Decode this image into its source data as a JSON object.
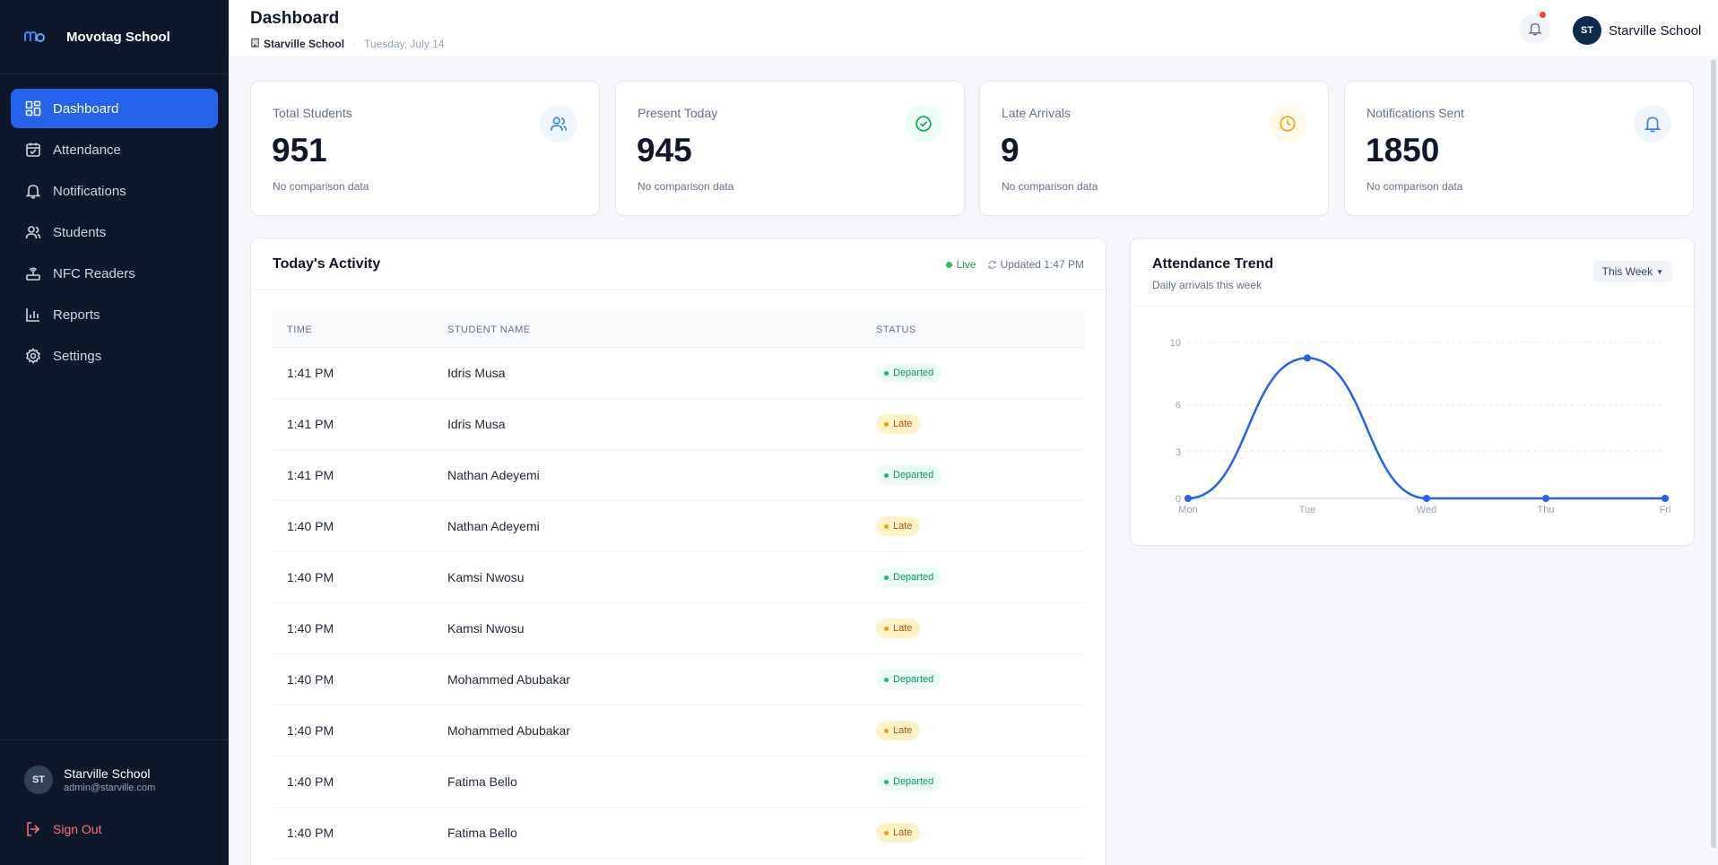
{
  "brand": {
    "name": "Movotag School"
  },
  "sidebar": {
    "items": [
      {
        "label": "Dashboard",
        "icon": "dashboard-icon",
        "active": true
      },
      {
        "label": "Attendance",
        "icon": "calendar-icon"
      },
      {
        "label": "Notifications",
        "icon": "bell-icon"
      },
      {
        "label": "Students",
        "icon": "users-icon"
      },
      {
        "label": "NFC Readers",
        "icon": "router-icon"
      },
      {
        "label": "Reports",
        "icon": "bar-chart-icon"
      },
      {
        "label": "Settings",
        "icon": "gear-icon"
      }
    ],
    "user": {
      "initials": "ST",
      "name": "Starville School",
      "email": "admin@starville.com"
    },
    "signout_label": "Sign Out"
  },
  "header": {
    "title": "Dashboard",
    "school": "Starville School",
    "date": "Tuesday, July 14",
    "profile": {
      "initials": "ST",
      "name": "Starville School"
    }
  },
  "stats": [
    {
      "label": "Total Students",
      "value": "951",
      "note": "No comparison data",
      "icon": "users-icon",
      "color": "#3b82f6",
      "bg": "#eff6ff"
    },
    {
      "label": "Present Today",
      "value": "945",
      "note": "No comparison data",
      "icon": "check-circle-icon",
      "color": "#16a34a",
      "bg": "#ecfdf5"
    },
    {
      "label": "Late Arrivals",
      "value": "9",
      "note": "No comparison data",
      "icon": "clock-icon",
      "color": "#f59e0b",
      "bg": "#fffbeb"
    },
    {
      "label": "Notifications Sent",
      "value": "1850",
      "note": "No comparison data",
      "icon": "bell-icon",
      "color": "#3b82f6",
      "bg": "#eff6ff"
    }
  ],
  "activity": {
    "title": "Today's Activity",
    "live_label": "Live",
    "updated_label": "Updated 1:47 PM",
    "columns": [
      "TIME",
      "STUDENT NAME",
      "STATUS"
    ],
    "rows": [
      {
        "time": "1:41 PM",
        "name": "Idris Musa",
        "status": "Departed"
      },
      {
        "time": "1:41 PM",
        "name": "Idris Musa",
        "status": "Late"
      },
      {
        "time": "1:41 PM",
        "name": "Nathan Adeyemi",
        "status": "Departed"
      },
      {
        "time": "1:40 PM",
        "name": "Nathan Adeyemi",
        "status": "Late"
      },
      {
        "time": "1:40 PM",
        "name": "Kamsi Nwosu",
        "status": "Departed"
      },
      {
        "time": "1:40 PM",
        "name": "Kamsi Nwosu",
        "status": "Late"
      },
      {
        "time": "1:40 PM",
        "name": "Mohammed Abubakar",
        "status": "Departed"
      },
      {
        "time": "1:40 PM",
        "name": "Mohammed Abubakar",
        "status": "Late"
      },
      {
        "time": "1:40 PM",
        "name": "Fatima Bello",
        "status": "Departed"
      },
      {
        "time": "1:40 PM",
        "name": "Fatima Bello",
        "status": "Late"
      }
    ]
  },
  "trend": {
    "title": "Attendance Trend",
    "subtitle": "Daily arrivals this week",
    "range_label": "This Week"
  },
  "chart_data": {
    "type": "line",
    "categories": [
      "Mon",
      "Tue",
      "Wed",
      "Thu",
      "Fri"
    ],
    "series": [
      {
        "values": [
          0,
          9,
          0,
          0,
          0
        ]
      }
    ],
    "yticks": [
      0,
      3,
      6,
      10
    ],
    "ylim": [
      0,
      10
    ],
    "grid": true,
    "color": "#2563eb"
  }
}
